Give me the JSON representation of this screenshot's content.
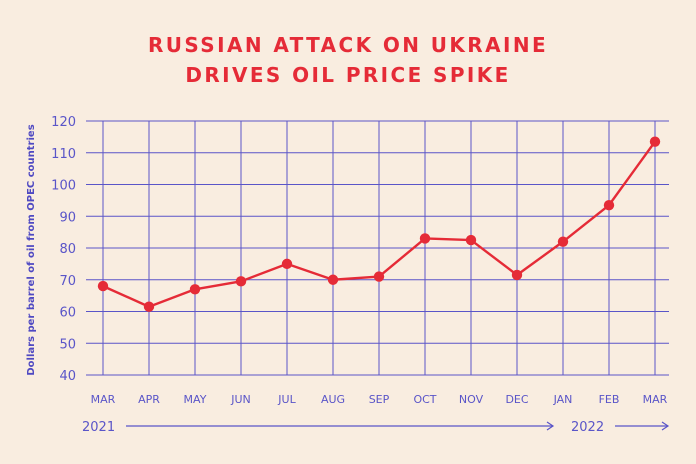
{
  "chart_data": {
    "type": "line",
    "title_lines": [
      "RUSSIAN ATTACK ON UKRAINE",
      "DRIVES OIL PRICE SPIKE"
    ],
    "ylabel": "Dollars per barrel of oil from OPEC countries",
    "xlabel": "",
    "categories": [
      "MAR",
      "APR",
      "MAY",
      "JUN",
      "JUL",
      "AUG",
      "SEP",
      "OCT",
      "NOV",
      "DEC",
      "JAN",
      "FEB",
      "MAR"
    ],
    "values": [
      68,
      61.5,
      67,
      69.5,
      75,
      70,
      71,
      83,
      82.5,
      71.5,
      82,
      93.5,
      113.5
    ],
    "ylim": [
      40,
      120
    ],
    "yticks": [
      40,
      50,
      60,
      70,
      80,
      90,
      100,
      110,
      120
    ],
    "grid": true,
    "year_labels": [
      {
        "label": "2021",
        "start_category": 0
      },
      {
        "label": "2022",
        "start_category": 10
      }
    ],
    "colors": {
      "line": "#e52b37",
      "marker": "#e52b37",
      "grid": "#5a55c8",
      "text": "#5a55c8",
      "title": "#e52b37",
      "background": "#f9ede0"
    }
  }
}
